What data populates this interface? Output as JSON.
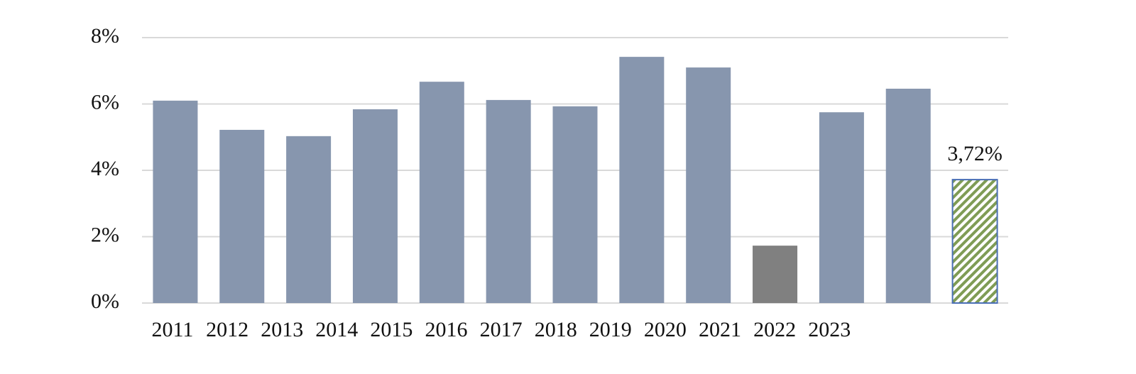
{
  "chart_data": {
    "type": "bar",
    "categories": [
      "2011",
      "2012",
      "2013",
      "2014",
      "2015",
      "2016",
      "2017",
      "2018",
      "2019",
      "2020",
      "2021",
      "2022",
      "2023"
    ],
    "values": [
      6.1,
      5.22,
      5.03,
      5.84,
      6.67,
      6.12,
      5.93,
      7.42,
      7.1,
      1.73,
      5.75,
      6.46,
      3.72
    ],
    "value_labels": [
      null,
      null,
      null,
      null,
      null,
      null,
      null,
      null,
      null,
      null,
      null,
      null,
      "3,72%"
    ],
    "colors": [
      "#8796ae",
      "#8796ae",
      "#8796ae",
      "#8796ae",
      "#8796ae",
      "#8796ae",
      "#8796ae",
      "#8796ae",
      "#8796ae",
      "#808080",
      "#8796ae",
      "#8796ae",
      "#7f9c55"
    ],
    "hatched": [
      false,
      false,
      false,
      false,
      false,
      false,
      false,
      false,
      false,
      false,
      false,
      false,
      true
    ],
    "ylim": [
      0,
      8
    ],
    "yticks": [
      {
        "value": 0,
        "label": "0%"
      },
      {
        "value": 2,
        "label": "2%"
      },
      {
        "value": 4,
        "label": "4%"
      },
      {
        "value": 6,
        "label": "6%"
      },
      {
        "value": 8,
        "label": "8%"
      }
    ],
    "grid": true
  }
}
